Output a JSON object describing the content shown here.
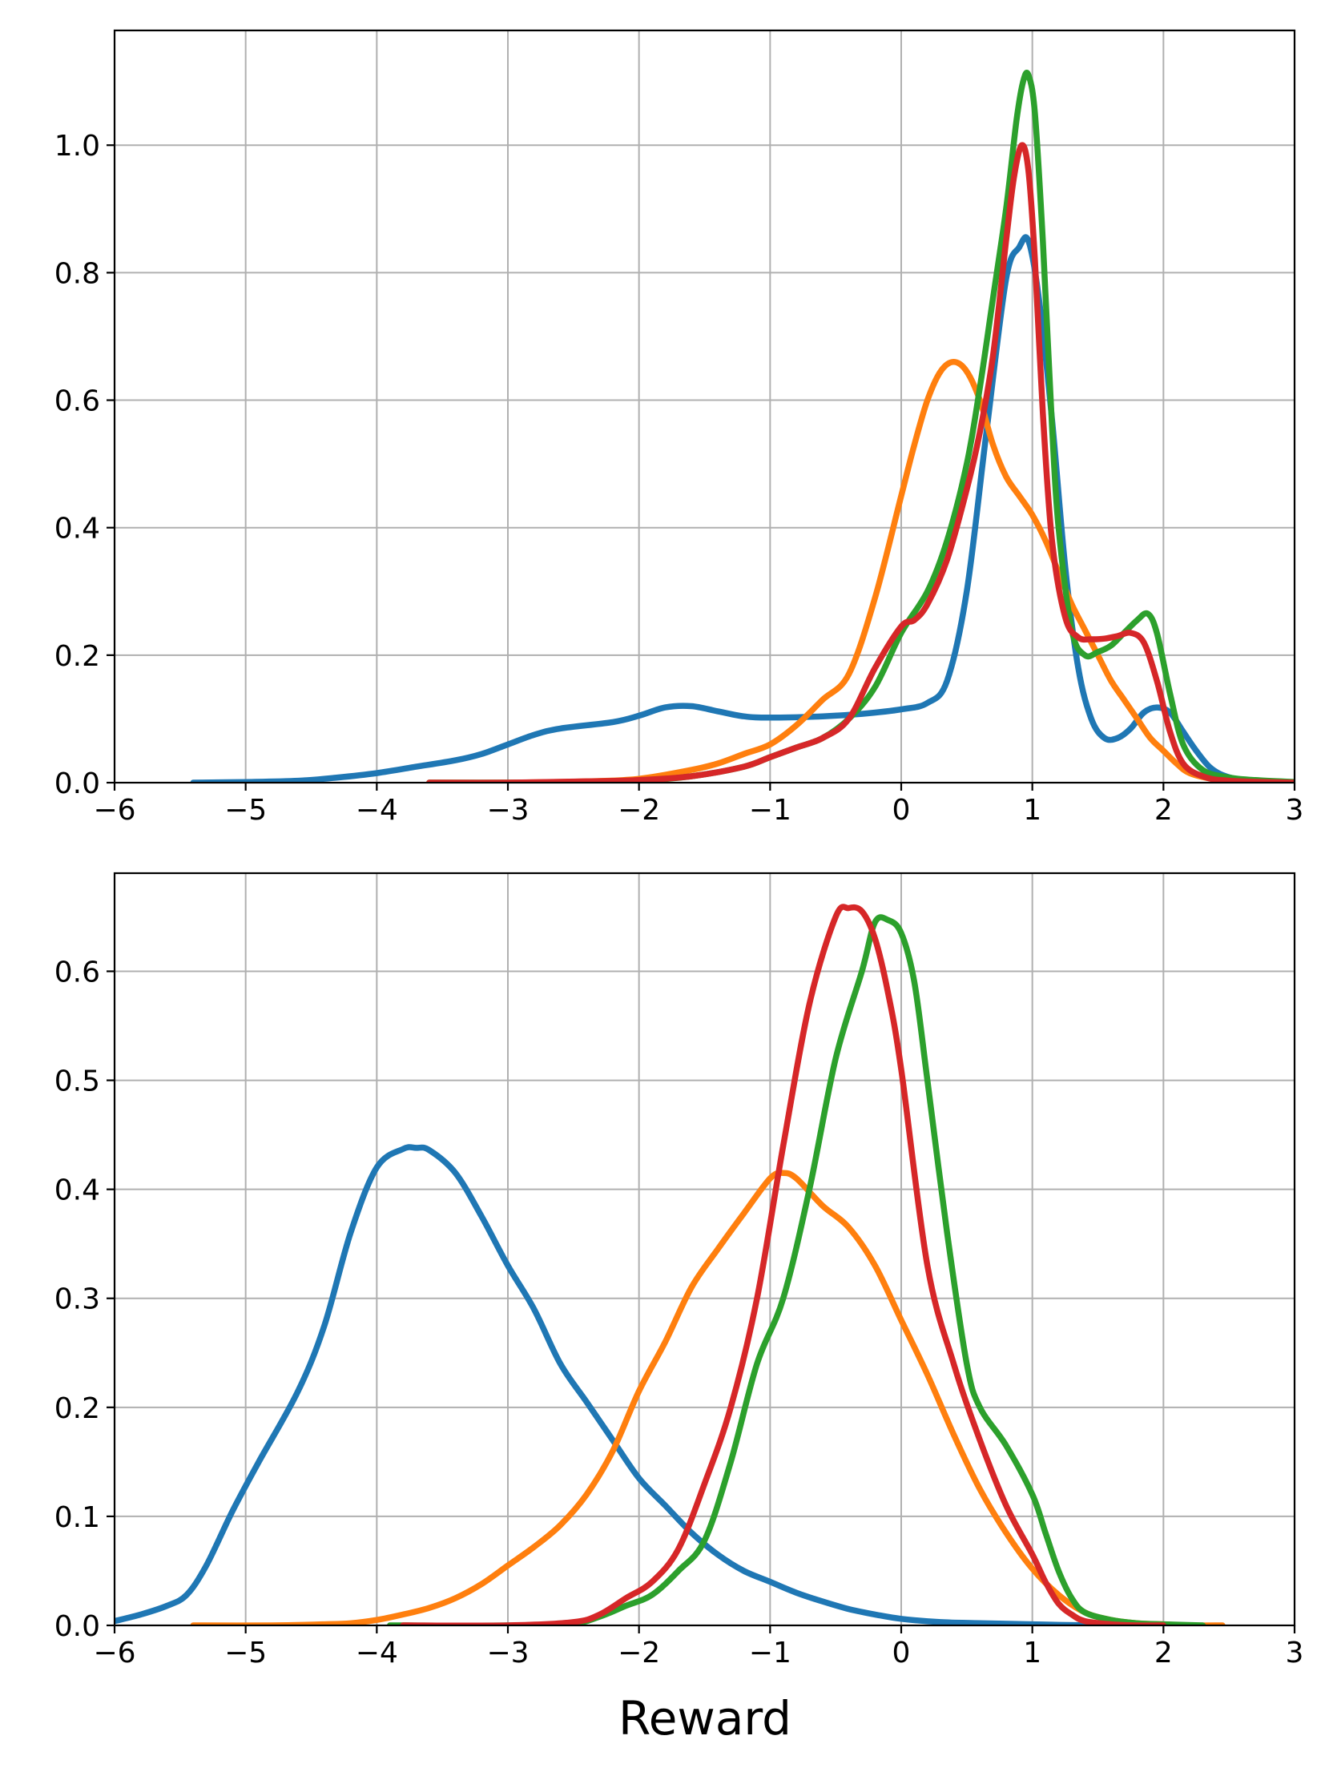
{
  "chart_data": [
    {
      "type": "line",
      "xlabel": "",
      "ylabel": "",
      "xlim": [
        -6,
        3
      ],
      "ylim": [
        0,
        1.18
      ],
      "xticks": [
        -6,
        -5,
        -4,
        -3,
        -2,
        -1,
        0,
        1,
        2,
        3
      ],
      "xtick_labels": [
        "−6",
        "−5",
        "−4",
        "−3",
        "−2",
        "−1",
        "0",
        "1",
        "2",
        "3"
      ],
      "yticks": [
        0.0,
        0.2,
        0.4,
        0.6,
        0.8,
        1.0
      ],
      "ytick_labels": [
        "0.0",
        "0.2",
        "0.4",
        "0.6",
        "0.8",
        "1.0"
      ],
      "grid": true,
      "legend": "none",
      "series": [
        {
          "color": "#1f77b4",
          "x": [
            -5.4,
            -5.0,
            -4.6,
            -4.3,
            -4.0,
            -3.7,
            -3.4,
            -3.2,
            -3.0,
            -2.8,
            -2.6,
            -2.2,
            -2.0,
            -1.8,
            -1.6,
            -1.4,
            -1.2,
            -1.0,
            -0.6,
            -0.3,
            0.0,
            0.2,
            0.35,
            0.5,
            0.65,
            0.8,
            0.9,
            0.97,
            1.05,
            1.15,
            1.25,
            1.35,
            1.45,
            1.55,
            1.65,
            1.75,
            1.85,
            1.95,
            2.05,
            2.15,
            2.25,
            2.35,
            2.45,
            2.6,
            2.8,
            3.0
          ],
          "y": [
            0.0,
            0.001,
            0.003,
            0.008,
            0.015,
            0.025,
            0.035,
            0.045,
            0.06,
            0.075,
            0.085,
            0.095,
            0.105,
            0.118,
            0.12,
            0.112,
            0.104,
            0.102,
            0.104,
            0.108,
            0.115,
            0.125,
            0.16,
            0.3,
            0.55,
            0.79,
            0.84,
            0.85,
            0.76,
            0.57,
            0.34,
            0.18,
            0.1,
            0.07,
            0.07,
            0.085,
            0.11,
            0.118,
            0.11,
            0.08,
            0.05,
            0.025,
            0.012,
            0.004,
            0.001,
            0.0
          ]
        },
        {
          "color": "#ff7f0e",
          "x": [
            -3.6,
            -3.0,
            -2.4,
            -2.0,
            -1.6,
            -1.4,
            -1.2,
            -1.0,
            -0.8,
            -0.6,
            -0.4,
            -0.2,
            0.0,
            0.1,
            0.2,
            0.3,
            0.4,
            0.5,
            0.6,
            0.7,
            0.8,
            0.9,
            1.0,
            1.1,
            1.2,
            1.3,
            1.4,
            1.5,
            1.6,
            1.7,
            1.8,
            1.9,
            2.0,
            2.1,
            2.2,
            2.4,
            2.6,
            2.8,
            3.0
          ],
          "y": [
            0.0,
            0.0,
            0.002,
            0.006,
            0.02,
            0.03,
            0.045,
            0.06,
            0.09,
            0.13,
            0.17,
            0.29,
            0.45,
            0.53,
            0.6,
            0.645,
            0.66,
            0.645,
            0.6,
            0.53,
            0.48,
            0.45,
            0.42,
            0.38,
            0.33,
            0.28,
            0.24,
            0.2,
            0.16,
            0.13,
            0.1,
            0.07,
            0.05,
            0.03,
            0.015,
            0.005,
            0.002,
            0.001,
            0.0
          ]
        },
        {
          "color": "#2ca02c",
          "x": [
            -3.6,
            -3.0,
            -2.4,
            -2.0,
            -1.6,
            -1.2,
            -1.0,
            -0.8,
            -0.6,
            -0.4,
            -0.2,
            0.0,
            0.2,
            0.35,
            0.5,
            0.6,
            0.7,
            0.8,
            0.88,
            0.93,
            0.97,
            1.02,
            1.08,
            1.15,
            1.2,
            1.3,
            1.4,
            1.5,
            1.6,
            1.7,
            1.8,
            1.88,
            1.95,
            2.05,
            2.15,
            2.3,
            2.5,
            2.7,
            3.0
          ],
          "y": [
            0.0,
            0.0,
            0.001,
            0.003,
            0.01,
            0.025,
            0.04,
            0.055,
            0.07,
            0.1,
            0.15,
            0.235,
            0.3,
            0.38,
            0.5,
            0.62,
            0.76,
            0.9,
            1.04,
            1.1,
            1.11,
            1.05,
            0.85,
            0.56,
            0.4,
            0.24,
            0.2,
            0.205,
            0.215,
            0.235,
            0.255,
            0.265,
            0.235,
            0.14,
            0.06,
            0.02,
            0.008,
            0.004,
            0.001
          ]
        },
        {
          "color": "#d62728",
          "x": [
            -3.6,
            -3.0,
            -2.4,
            -2.0,
            -1.6,
            -1.2,
            -1.0,
            -0.8,
            -0.6,
            -0.4,
            -0.2,
            0.0,
            0.1,
            0.2,
            0.35,
            0.5,
            0.6,
            0.7,
            0.8,
            0.86,
            0.92,
            0.97,
            1.02,
            1.08,
            1.15,
            1.25,
            1.35,
            1.45,
            1.55,
            1.65,
            1.75,
            1.85,
            1.95,
            2.05,
            2.15,
            2.3,
            2.5,
            3.0
          ],
          "y": [
            0.0,
            0.0,
            0.002,
            0.004,
            0.01,
            0.025,
            0.04,
            0.055,
            0.07,
            0.1,
            0.18,
            0.245,
            0.255,
            0.28,
            0.35,
            0.46,
            0.55,
            0.67,
            0.85,
            0.95,
            1.0,
            0.96,
            0.82,
            0.58,
            0.38,
            0.26,
            0.228,
            0.225,
            0.226,
            0.23,
            0.235,
            0.22,
            0.16,
            0.08,
            0.03,
            0.01,
            0.003,
            0.0
          ]
        }
      ]
    },
    {
      "type": "line",
      "xlabel": "Reward",
      "ylabel": "",
      "xlim": [
        -6,
        3
      ],
      "ylim": [
        0,
        0.69
      ],
      "xticks": [
        -6,
        -5,
        -4,
        -3,
        -2,
        -1,
        0,
        1,
        2,
        3
      ],
      "xtick_labels": [
        "−6",
        "−5",
        "−4",
        "−3",
        "−2",
        "−1",
        "0",
        "1",
        "2",
        "3"
      ],
      "yticks": [
        0.0,
        0.1,
        0.2,
        0.3,
        0.4,
        0.5,
        0.6
      ],
      "ytick_labels": [
        "0.0",
        "0.1",
        "0.2",
        "0.3",
        "0.4",
        "0.5",
        "0.6"
      ],
      "grid": true,
      "legend": "none",
      "series": [
        {
          "color": "#1f77b4",
          "x": [
            -6.0,
            -5.8,
            -5.6,
            -5.45,
            -5.3,
            -5.1,
            -4.9,
            -4.6,
            -4.4,
            -4.2,
            -4.0,
            -3.8,
            -3.7,
            -3.6,
            -3.4,
            -3.2,
            -3.0,
            -2.8,
            -2.6,
            -2.4,
            -2.2,
            -2.0,
            -1.8,
            -1.6,
            -1.4,
            -1.2,
            -1.0,
            -0.8,
            -0.6,
            -0.4,
            -0.2,
            0.0,
            0.3,
            0.6,
            1.0,
            1.5,
            2.0
          ],
          "y": [
            0.004,
            0.01,
            0.018,
            0.028,
            0.055,
            0.105,
            0.15,
            0.215,
            0.275,
            0.36,
            0.42,
            0.437,
            0.438,
            0.436,
            0.415,
            0.375,
            0.33,
            0.29,
            0.24,
            0.205,
            0.17,
            0.135,
            0.11,
            0.085,
            0.065,
            0.05,
            0.04,
            0.03,
            0.022,
            0.015,
            0.01,
            0.006,
            0.003,
            0.002,
            0.001,
            0.0,
            0.0
          ]
        },
        {
          "color": "#ff7f0e",
          "x": [
            -5.4,
            -4.8,
            -4.4,
            -4.2,
            -4.0,
            -3.8,
            -3.6,
            -3.4,
            -3.2,
            -3.0,
            -2.8,
            -2.6,
            -2.4,
            -2.2,
            -2.0,
            -1.8,
            -1.6,
            -1.4,
            -1.2,
            -1.0,
            -0.9,
            -0.8,
            -0.6,
            -0.4,
            -0.2,
            0.0,
            0.2,
            0.4,
            0.6,
            0.8,
            1.0,
            1.2,
            1.4,
            1.6,
            1.8,
            2.0,
            2.2,
            2.45
          ],
          "y": [
            0.0,
            0.0,
            0.001,
            0.002,
            0.005,
            0.01,
            0.016,
            0.025,
            0.038,
            0.055,
            0.072,
            0.092,
            0.12,
            0.16,
            0.215,
            0.26,
            0.31,
            0.345,
            0.378,
            0.41,
            0.415,
            0.41,
            0.385,
            0.365,
            0.33,
            0.28,
            0.23,
            0.175,
            0.125,
            0.085,
            0.052,
            0.028,
            0.012,
            0.005,
            0.002,
            0.001,
            0.0,
            0.0
          ]
        },
        {
          "color": "#2ca02c",
          "x": [
            -3.9,
            -3.0,
            -2.5,
            -2.3,
            -2.1,
            -1.9,
            -1.7,
            -1.5,
            -1.3,
            -1.1,
            -0.9,
            -0.7,
            -0.5,
            -0.3,
            -0.2,
            -0.1,
            0.0,
            0.1,
            0.2,
            0.35,
            0.5,
            0.6,
            0.8,
            1.0,
            1.1,
            1.2,
            1.3,
            1.4,
            1.6,
            1.8,
            2.0,
            2.3
          ],
          "y": [
            0.0,
            0.0,
            0.002,
            0.008,
            0.018,
            0.028,
            0.05,
            0.078,
            0.15,
            0.24,
            0.3,
            0.4,
            0.52,
            0.6,
            0.645,
            0.647,
            0.635,
            0.59,
            0.5,
            0.36,
            0.24,
            0.2,
            0.165,
            0.12,
            0.085,
            0.05,
            0.025,
            0.012,
            0.005,
            0.002,
            0.001,
            0.0
          ]
        },
        {
          "color": "#d62728",
          "x": [
            -3.8,
            -3.0,
            -2.5,
            -2.3,
            -2.1,
            -1.9,
            -1.7,
            -1.5,
            -1.3,
            -1.1,
            -0.9,
            -0.7,
            -0.5,
            -0.4,
            -0.3,
            -0.2,
            -0.1,
            0.0,
            0.2,
            0.4,
            0.6,
            0.8,
            1.0,
            1.1,
            1.2,
            1.3,
            1.4,
            1.6,
            1.8,
            2.0
          ],
          "y": [
            0.0,
            0.0,
            0.003,
            0.01,
            0.025,
            0.04,
            0.07,
            0.13,
            0.2,
            0.3,
            0.44,
            0.57,
            0.65,
            0.658,
            0.655,
            0.63,
            0.58,
            0.51,
            0.33,
            0.24,
            0.17,
            0.11,
            0.065,
            0.04,
            0.02,
            0.01,
            0.004,
            0.001,
            0.0,
            0.0
          ]
        }
      ]
    }
  ]
}
